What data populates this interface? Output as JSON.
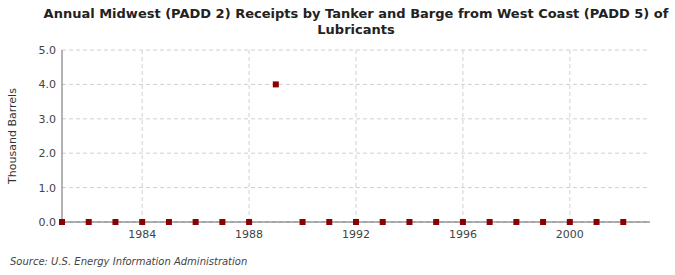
{
  "chart_data": {
    "type": "scatter",
    "title": "Annual Midwest (PADD 2) Receipts by Tanker and Barge from West Coast (PADD 5) of\nLubricants",
    "ylabel": "Thousand Barrels",
    "annotations": [
      "Source: U.S. Energy Information Administration"
    ],
    "x": [
      1981,
      1982,
      1983,
      1984,
      1985,
      1986,
      1987,
      1988,
      1989,
      1990,
      1991,
      1992,
      1993,
      1994,
      1995,
      1996,
      1997,
      1998,
      1999,
      2000,
      2001,
      2002
    ],
    "values": [
      0,
      0,
      0,
      0,
      0,
      0,
      0,
      0,
      4,
      0,
      0,
      0,
      0,
      0,
      0,
      0,
      0,
      0,
      0,
      0,
      0,
      0
    ],
    "xlim": [
      1981.0,
      2003.0
    ],
    "ylim": [
      0.0,
      5.0
    ],
    "xticks": [
      1984,
      1988,
      1992,
      1996,
      2000
    ],
    "yticks": [
      {
        "value": 0.0,
        "label": "0.0"
      },
      {
        "value": 1.0,
        "label": "1.0"
      },
      {
        "value": 2.0,
        "label": "2.0"
      },
      {
        "value": 3.0,
        "label": "3.0"
      },
      {
        "value": 4.0,
        "label": "4.0"
      },
      {
        "value": 5.0,
        "label": "5.0"
      }
    ],
    "grid": true,
    "color": "#8b0000",
    "marker": "square"
  }
}
